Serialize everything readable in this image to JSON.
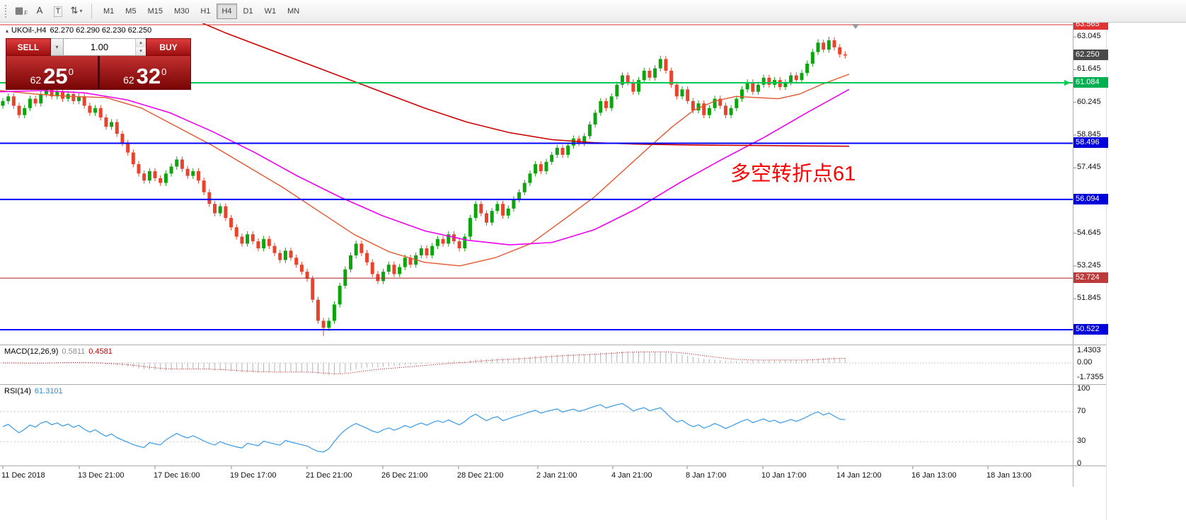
{
  "toolbar": {
    "tools": [
      {
        "name": "objects-grid-icon",
        "glyph": "▦",
        "sub": "F"
      },
      {
        "name": "arrow-tool-icon",
        "glyph": "A"
      },
      {
        "name": "text-tool-icon",
        "glyph": "T",
        "boxed": true
      },
      {
        "name": "cycle-lines-icon",
        "glyph": "⇅",
        "dropdown": true
      }
    ],
    "timeframes": [
      "M1",
      "M5",
      "M15",
      "M30",
      "H1",
      "H4",
      "D1",
      "W1",
      "MN"
    ],
    "active_timeframe": "H4"
  },
  "chart": {
    "title_symbol": "UKOil-,H4",
    "title_ohlc": "62.270 62.290 62.230 62.250",
    "annotation": {
      "text": "多空转折点61",
      "color": "#ff0000"
    }
  },
  "trade_widget": {
    "sell_label": "SELL",
    "buy_label": "BUY",
    "volume": "1.00",
    "sell_price": {
      "int": "62",
      "big": "25",
      "sup": "0"
    },
    "buy_price": {
      "int": "62",
      "big": "32",
      "sup": "0"
    }
  },
  "chart_data": {
    "type": "candlestick",
    "symbol": "UKOil-",
    "timeframe": "H4",
    "current_open": 62.27,
    "current_high": 62.29,
    "current_low": 62.23,
    "current_close": 62.25,
    "colors": {
      "up": "#0da50d",
      "down": "#e8432c"
    },
    "first_open": 60.1,
    "wick": 0.13,
    "wick_overrides": {
      "59": {
        "low": 50.25
      },
      "150": {
        "high": 62.95
      },
      "152": {
        "high": 63.05
      }
    },
    "closes": [
      60.3,
      60.5,
      60.1,
      59.7,
      60.0,
      60.4,
      60.2,
      60.6,
      60.8,
      60.5,
      60.7,
      60.4,
      60.6,
      60.3,
      60.5,
      60.1,
      59.8,
      60.0,
      59.6,
      59.2,
      59.4,
      58.9,
      58.5,
      58.1,
      57.6,
      57.2,
      56.9,
      57.3,
      57.0,
      56.8,
      57.2,
      57.5,
      57.8,
      57.4,
      57.1,
      57.3,
      56.9,
      56.4,
      55.9,
      55.5,
      55.8,
      55.3,
      54.9,
      54.5,
      54.2,
      54.6,
      54.3,
      54.0,
      54.4,
      54.1,
      53.8,
      53.5,
      53.9,
      53.6,
      53.3,
      53.0,
      52.7,
      51.8,
      50.9,
      50.6,
      50.9,
      51.6,
      52.4,
      53.1,
      53.7,
      54.2,
      53.8,
      53.4,
      52.9,
      52.6,
      53.0,
      53.3,
      52.9,
      53.2,
      53.6,
      53.3,
      53.7,
      54.0,
      53.7,
      54.1,
      54.4,
      54.2,
      54.6,
      54.3,
      54.0,
      54.5,
      55.3,
      55.9,
      55.5,
      55.1,
      55.6,
      55.9,
      55.4,
      55.7,
      56.1,
      56.4,
      56.8,
      57.2,
      57.6,
      57.3,
      57.7,
      58.0,
      58.3,
      58.0,
      58.4,
      58.7,
      58.5,
      58.8,
      59.3,
      59.8,
      60.3,
      60.0,
      60.5,
      61.0,
      61.4,
      61.1,
      60.7,
      61.2,
      61.6,
      61.3,
      61.7,
      62.1,
      61.6,
      61.0,
      60.5,
      60.8,
      60.3,
      59.9,
      60.2,
      59.7,
      60.0,
      60.4,
      60.1,
      59.7,
      60.0,
      60.4,
      60.8,
      61.1,
      60.7,
      61.0,
      61.3,
      61.0,
      61.2,
      60.9,
      61.1,
      61.4,
      61.2,
      61.5,
      61.9,
      62.4,
      62.8,
      62.5,
      62.9,
      62.6,
      62.3,
      62.25
    ],
    "ma_fast": {
      "color": "#e2572f",
      "width": 1.4,
      "points": [
        [
          0,
          60.75
        ],
        [
          50,
          60.6
        ],
        [
          100,
          60.5
        ],
        [
          150,
          60.45
        ],
        [
          200,
          60.0
        ],
        [
          250,
          59.2
        ],
        [
          300,
          58.4
        ],
        [
          350,
          57.5
        ],
        [
          400,
          56.6
        ],
        [
          450,
          55.6
        ],
        [
          500,
          54.6
        ],
        [
          550,
          53.85
        ],
        [
          600,
          53.4
        ],
        [
          650,
          53.25
        ],
        [
          700,
          53.6
        ],
        [
          750,
          54.2
        ],
        [
          800,
          55.3
        ],
        [
          840,
          56.2
        ],
        [
          880,
          57.3
        ],
        [
          920,
          58.4
        ],
        [
          950,
          59.2
        ],
        [
          980,
          59.9
        ],
        [
          1010,
          60.3
        ],
        [
          1040,
          60.5
        ],
        [
          1070,
          60.45
        ],
        [
          1100,
          60.4
        ],
        [
          1130,
          60.6
        ],
        [
          1160,
          61.0
        ],
        [
          1200,
          61.45
        ]
      ]
    },
    "ma_mid": {
      "color": "#ee00ee",
      "width": 1.6,
      "points": [
        [
          0,
          60.7
        ],
        [
          60,
          60.75
        ],
        [
          120,
          60.65
        ],
        [
          180,
          60.35
        ],
        [
          240,
          59.8
        ],
        [
          300,
          59.0
        ],
        [
          360,
          58.1
        ],
        [
          420,
          57.1
        ],
        [
          480,
          56.2
        ],
        [
          540,
          55.4
        ],
        [
          600,
          54.75
        ],
        [
          660,
          54.35
        ],
        [
          720,
          54.15
        ],
        [
          780,
          54.25
        ],
        [
          840,
          54.8
        ],
        [
          900,
          55.7
        ],
        [
          960,
          56.8
        ],
        [
          1020,
          57.8
        ],
        [
          1080,
          58.75
        ],
        [
          1140,
          59.8
        ],
        [
          1200,
          60.8
        ]
      ]
    },
    "ma_slow": {
      "color": "#cc0000",
      "width": 1.6,
      "points": [
        [
          250,
          64.1
        ],
        [
          320,
          63.2
        ],
        [
          390,
          62.4
        ],
        [
          460,
          61.6
        ],
        [
          530,
          60.8
        ],
        [
          600,
          60.0
        ],
        [
          660,
          59.4
        ],
        [
          720,
          58.95
        ],
        [
          780,
          58.65
        ],
        [
          840,
          58.52
        ],
        [
          900,
          58.46
        ],
        [
          960,
          58.43
        ],
        [
          1020,
          58.41
        ],
        [
          1080,
          58.4
        ],
        [
          1140,
          58.38
        ],
        [
          1200,
          58.37
        ]
      ]
    },
    "levels": [
      {
        "price": 63.565,
        "color": "#e03333",
        "width": 1,
        "badge": "#e03333"
      },
      {
        "price": 62.25,
        "color": "#cfcfcf",
        "width": 0,
        "badge": "#4a4a4a"
      },
      {
        "price": 61.084,
        "color": "#00c853",
        "width": 2,
        "badge": "#00b050",
        "arrow": true
      },
      {
        "price": 58.496,
        "color": "#0000ff",
        "width": 2,
        "badge": "#0000dd"
      },
      {
        "price": 56.094,
        "color": "#0000ff",
        "width": 2,
        "badge": "#0000dd"
      },
      {
        "price": 52.724,
        "color": "#aa2222",
        "width": 1,
        "badge": "#bb3b3b"
      },
      {
        "price": 50.522,
        "color": "#0000ff",
        "width": 2,
        "badge": "#0000dd"
      }
    ],
    "axis_ticks": [
      63.045,
      61.645,
      60.245,
      58.845,
      57.445,
      54.645,
      53.245,
      51.845
    ],
    "macd": {
      "label": "MACD(12,26,9)",
      "value_main": "0.5811",
      "value_signal": "0.4581",
      "axis": [
        "1.4303",
        "0.00",
        "-1.7355"
      ],
      "hist_color": "#b4b4b4",
      "signal_color": "#cc0000"
    },
    "rsi": {
      "label": "RSI(14)",
      "value": "61.3101",
      "axis": [
        100,
        70,
        30,
        0
      ],
      "color": "#44a0e8",
      "levels": [
        70,
        30
      ]
    },
    "time_labels": [
      [
        "11 Dec 2018",
        4
      ],
      [
        "13 Dec 21:00",
        112
      ],
      [
        "17 Dec 16:00",
        219
      ],
      [
        "19 Dec 17:00",
        327
      ],
      [
        "21 Dec 21:00",
        434
      ],
      [
        "26 Dec 21:00",
        541
      ],
      [
        "28 Dec 21:00",
        648
      ],
      [
        "2 Jan 21:00",
        760
      ],
      [
        "4 Jan 21:00",
        866
      ],
      [
        "8 Jan 17:00",
        971
      ],
      [
        "10 Jan 17:00",
        1078
      ],
      [
        "14 Jan 12:00",
        1184
      ],
      [
        "16 Jan 13:00",
        1290
      ],
      [
        "18 Jan 13:00",
        1396
      ]
    ]
  }
}
